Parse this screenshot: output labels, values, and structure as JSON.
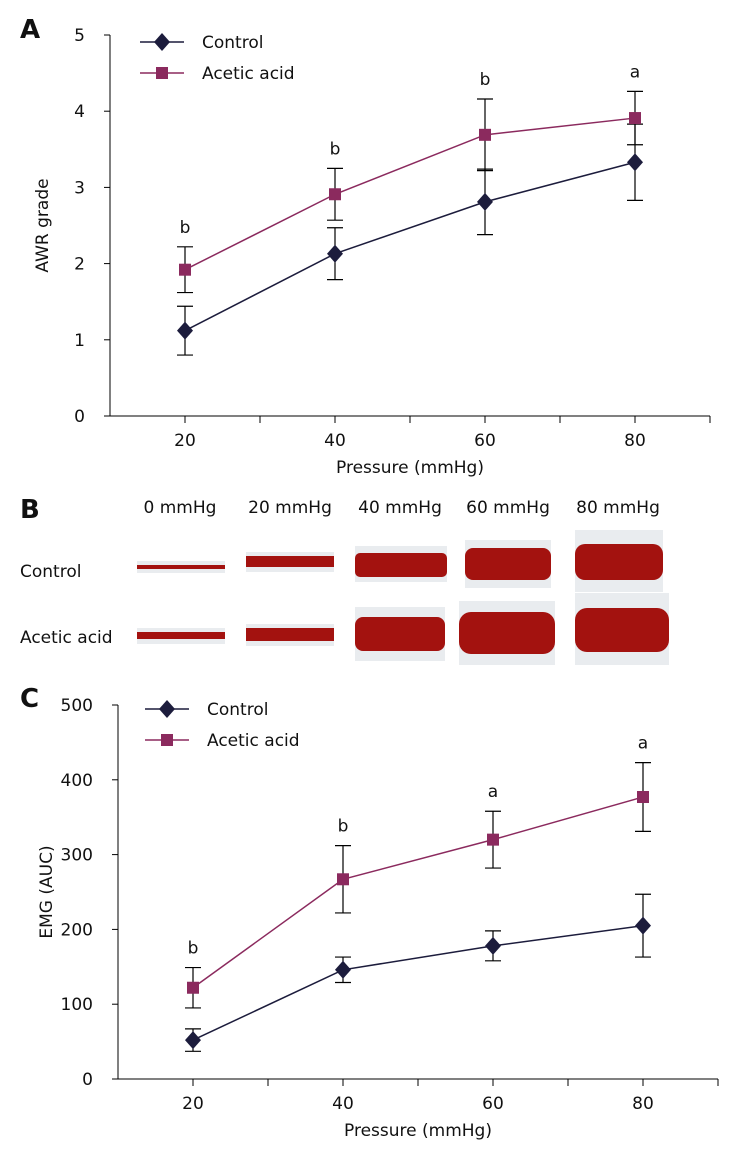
{
  "panel_labels": [
    "A",
    "B",
    "C"
  ],
  "emg_traces": {
    "pressures": [
      "0 mmHg",
      "20 mmHg",
      "40 mmHg",
      "60 mmHg",
      "80 mmHg"
    ],
    "rows": [
      "Control",
      "Acetic acid"
    ]
  },
  "chart_data": [
    {
      "type": "line",
      "xlabel": "Pressure (mmHg)",
      "ylabel": "AWR grade",
      "x": [
        20,
        40,
        60,
        80
      ],
      "xlim": [
        10,
        90
      ],
      "xticks": [
        20,
        40,
        60,
        80
      ],
      "xminorticks": [
        30,
        50,
        70,
        90
      ],
      "ylim": [
        0,
        5
      ],
      "yticks": [
        0,
        1,
        2,
        3,
        4,
        5
      ],
      "legend": "upper-left",
      "series": [
        {
          "name": "Control",
          "color": "#1c1c3c",
          "marker": "diamond",
          "values": [
            1.12,
            2.13,
            2.81,
            3.33
          ],
          "errors": [
            0.32,
            0.34,
            0.43,
            0.5
          ]
        },
        {
          "name": "Acetic acid",
          "color": "#8b2a5e",
          "marker": "square",
          "values": [
            1.92,
            2.91,
            3.69,
            3.91
          ],
          "errors": [
            0.3,
            0.34,
            0.47,
            0.35
          ]
        }
      ],
      "annotations": [
        "b",
        "b",
        "b",
        "a"
      ]
    },
    {
      "type": "line",
      "xlabel": "Pressure (mmHg)",
      "ylabel": "EMG (AUC)",
      "x": [
        20,
        40,
        60,
        80
      ],
      "xlim": [
        10,
        90
      ],
      "xticks": [
        20,
        40,
        60,
        80
      ],
      "xminorticks": [
        30,
        50,
        70,
        90
      ],
      "ylim": [
        0,
        500
      ],
      "yticks": [
        0,
        100,
        200,
        300,
        400,
        500
      ],
      "legend": "upper-left",
      "series": [
        {
          "name": "Control",
          "color": "#1c1c3c",
          "marker": "diamond",
          "values": [
            52,
            146,
            178,
            205
          ],
          "errors": [
            15,
            17,
            20,
            42
          ]
        },
        {
          "name": "Acetic acid",
          "color": "#8b2a5e",
          "marker": "square",
          "values": [
            122,
            267,
            320,
            377
          ],
          "errors": [
            27,
            45,
            38,
            46
          ]
        }
      ],
      "annotations": [
        "b",
        "b",
        "a",
        "a"
      ]
    }
  ]
}
